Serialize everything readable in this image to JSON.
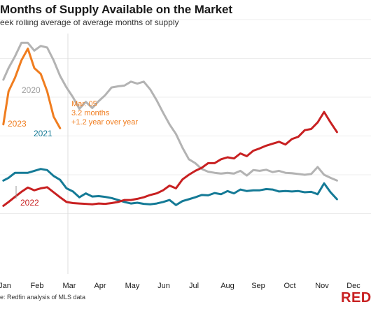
{
  "title": "Months of Supply Available on the Market",
  "subtitle": "eek rolling average of average months of supply",
  "source": "e: Redfin analysis of MLS data",
  "logo_text": "REDFI",
  "annotation": {
    "date": "Mar. 05",
    "value": "3.2 months",
    "change": "+1.2 year over year"
  },
  "chart_data": {
    "type": "line",
    "title": "Months of Supply Available on the Market",
    "subtitle": "eek rolling average of average months of supply",
    "xlabel": "",
    "ylabel": "",
    "x_ticks": [
      "Jan",
      "Feb",
      "Mar",
      "Apr",
      "May",
      "Jun",
      "Jul",
      "Aug",
      "Sep",
      "Oct",
      "Nov",
      "Dec"
    ],
    "x_unit": "week",
    "ylim": [
      0,
      6
    ],
    "grid": true,
    "legend": "direct labels",
    "series": [
      {
        "name": "2020",
        "color": "#b3b3b3",
        "x": [
          0.2,
          1,
          2,
          3,
          4,
          5,
          6,
          7,
          8,
          9,
          10,
          11,
          12,
          13,
          14,
          15,
          16,
          17,
          18,
          19,
          20,
          21,
          22,
          23,
          24,
          25,
          26,
          27,
          28,
          29,
          30,
          31,
          32,
          33,
          34,
          35,
          36,
          37,
          38,
          39,
          40,
          41,
          42,
          43,
          44,
          45,
          46,
          47,
          48,
          49,
          50,
          51,
          52
        ],
        "values": [
          4.45,
          4.75,
          5.05,
          5.4,
          5.4,
          5.2,
          5.32,
          5.28,
          4.95,
          4.55,
          4.25,
          4.0,
          3.7,
          3.88,
          3.72,
          3.9,
          4.05,
          4.25,
          4.28,
          4.3,
          4.4,
          4.35,
          4.4,
          4.2,
          3.92,
          3.6,
          3.3,
          3.05,
          2.7,
          2.4,
          2.3,
          2.15,
          2.08,
          2.05,
          2.03,
          2.05,
          2.03,
          2.1,
          1.98,
          2.12,
          2.1,
          2.13,
          2.07,
          2.1,
          2.05,
          2.04,
          2.02,
          2.0,
          2.02,
          2.2,
          2.0,
          1.92,
          1.85
        ]
      },
      {
        "name": "2021",
        "color": "#147a96",
        "x": [
          0.2,
          1,
          2,
          3,
          4,
          5,
          6,
          7,
          8,
          9,
          10,
          11,
          12,
          13,
          14,
          15,
          16,
          17,
          18,
          19,
          20,
          21,
          22,
          23,
          24,
          25,
          26,
          27,
          28,
          29,
          30,
          31,
          32,
          33,
          34,
          35,
          36,
          37,
          38,
          39,
          40,
          41,
          42,
          43,
          44,
          45,
          46,
          47,
          48,
          49,
          50,
          51,
          52
        ],
        "values": [
          1.85,
          1.92,
          2.05,
          2.05,
          2.05,
          2.1,
          2.15,
          2.12,
          1.97,
          1.87,
          1.65,
          1.57,
          1.42,
          1.52,
          1.44,
          1.45,
          1.43,
          1.4,
          1.35,
          1.3,
          1.26,
          1.28,
          1.25,
          1.24,
          1.26,
          1.3,
          1.35,
          1.22,
          1.32,
          1.37,
          1.42,
          1.48,
          1.47,
          1.53,
          1.5,
          1.58,
          1.52,
          1.62,
          1.58,
          1.6,
          1.6,
          1.63,
          1.62,
          1.57,
          1.58,
          1.57,
          1.58,
          1.55,
          1.56,
          1.5,
          1.78,
          1.55,
          1.37
        ]
      },
      {
        "name": "2022",
        "color": "#c82021",
        "x": [
          0.2,
          1,
          2,
          3,
          4,
          5,
          6,
          7,
          8,
          9,
          10,
          11,
          12,
          13,
          14,
          15,
          16,
          17,
          18,
          19,
          20,
          21,
          22,
          23,
          24,
          25,
          26,
          27,
          28,
          29,
          30,
          31,
          32,
          33,
          34,
          35,
          36,
          37,
          38,
          39,
          40,
          41,
          42,
          43,
          44,
          45,
          46,
          47,
          48,
          49,
          50,
          51,
          52
        ],
        "values": [
          1.2,
          1.3,
          1.43,
          1.56,
          1.67,
          1.6,
          1.65,
          1.68,
          1.55,
          1.42,
          1.3,
          1.27,
          1.26,
          1.25,
          1.24,
          1.26,
          1.25,
          1.27,
          1.3,
          1.35,
          1.35,
          1.38,
          1.42,
          1.48,
          1.52,
          1.6,
          1.72,
          1.65,
          1.88,
          2.0,
          2.1,
          2.18,
          2.3,
          2.3,
          2.4,
          2.45,
          2.42,
          2.55,
          2.48,
          2.62,
          2.68,
          2.75,
          2.8,
          2.85,
          2.78,
          2.92,
          2.98,
          3.15,
          3.18,
          3.35,
          3.62,
          3.35,
          3.1
        ]
      },
      {
        "name": "2023",
        "color": "#f07d1f",
        "x": [
          0.2,
          1,
          2,
          3,
          4,
          5,
          6,
          7,
          8,
          9
        ],
        "values": [
          3.3,
          4.15,
          4.5,
          4.95,
          5.25,
          4.75,
          4.6,
          4.15,
          3.5,
          3.2
        ]
      }
    ]
  }
}
